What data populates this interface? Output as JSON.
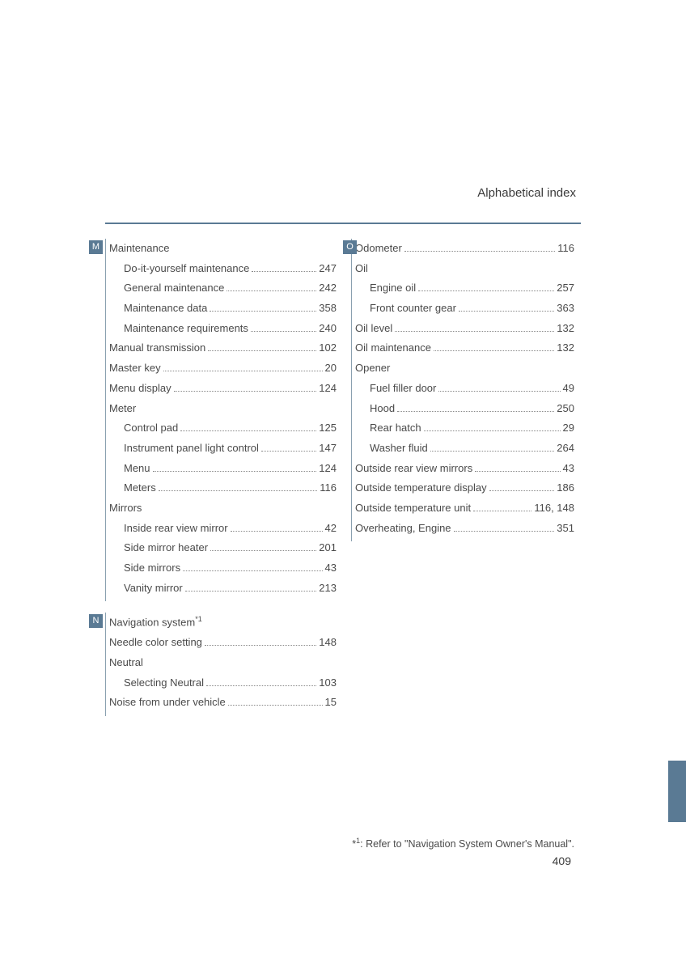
{
  "header": {
    "title": "Alphabetical index"
  },
  "colors": {
    "accent": "#5a7a94",
    "text": "#4a4a4a"
  },
  "footnote": "*1: Refer to \"Navigation System Owner's Manual\".",
  "page_number": "409",
  "left": [
    {
      "letter": "M",
      "items": [
        {
          "label": "Maintenance",
          "page": "",
          "sub": false,
          "nodots": true
        },
        {
          "label": "Do-it-yourself maintenance",
          "page": "247",
          "sub": true
        },
        {
          "label": "General maintenance",
          "page": "242",
          "sub": true
        },
        {
          "label": "Maintenance data",
          "page": "358",
          "sub": true
        },
        {
          "label": "Maintenance requirements",
          "page": "240",
          "sub": true
        },
        {
          "label": "Manual transmission",
          "page": "102",
          "sub": false
        },
        {
          "label": "Master key",
          "page": "20",
          "sub": false
        },
        {
          "label": "Menu display",
          "page": "124",
          "sub": false
        },
        {
          "label": "Meter",
          "page": "",
          "sub": false,
          "nodots": true
        },
        {
          "label": "Control pad",
          "page": "125",
          "sub": true
        },
        {
          "label": "Instrument panel light control",
          "page": "147",
          "sub": true
        },
        {
          "label": "Menu",
          "page": "124",
          "sub": true
        },
        {
          "label": "Meters",
          "page": "116",
          "sub": true
        },
        {
          "label": "Mirrors",
          "page": "",
          "sub": false,
          "nodots": true
        },
        {
          "label": "Inside rear view mirror",
          "page": "42",
          "sub": true
        },
        {
          "label": "Side mirror heater",
          "page": "201",
          "sub": true
        },
        {
          "label": "Side mirrors",
          "page": "43",
          "sub": true
        },
        {
          "label": "Vanity mirror",
          "page": "213",
          "sub": true
        }
      ]
    },
    {
      "letter": "N",
      "items": [
        {
          "label": "Navigation system",
          "sup": "*1",
          "page": "",
          "sub": false,
          "nodots": true
        },
        {
          "label": "Needle color setting",
          "page": "148",
          "sub": false
        },
        {
          "label": "Neutral",
          "page": "",
          "sub": false,
          "nodots": true
        },
        {
          "label": "Selecting Neutral",
          "page": "103",
          "sub": true
        },
        {
          "label": "Noise from under vehicle",
          "page": "15",
          "sub": false
        }
      ]
    }
  ],
  "right": [
    {
      "letter": "O",
      "items": [
        {
          "label": "Odometer",
          "page": "116",
          "sub": false
        },
        {
          "label": "Oil",
          "page": "",
          "sub": false,
          "nodots": true
        },
        {
          "label": "Engine oil",
          "page": "257",
          "sub": true
        },
        {
          "label": "Front counter gear",
          "page": "363",
          "sub": true
        },
        {
          "label": "Oil level",
          "page": "132",
          "sub": false
        },
        {
          "label": "Oil maintenance",
          "page": "132",
          "sub": false
        },
        {
          "label": "Opener",
          "page": "",
          "sub": false,
          "nodots": true
        },
        {
          "label": "Fuel filler door",
          "page": "49",
          "sub": true
        },
        {
          "label": "Hood",
          "page": "250",
          "sub": true
        },
        {
          "label": "Rear hatch",
          "page": "29",
          "sub": true
        },
        {
          "label": "Washer fluid",
          "page": "264",
          "sub": true
        },
        {
          "label": "Outside rear view mirrors",
          "page": "43",
          "sub": false
        },
        {
          "label": "Outside temperature display",
          "page": "186",
          "sub": false
        },
        {
          "label": "Outside temperature unit",
          "page": "116, 148",
          "sub": false
        },
        {
          "label": "Overheating, Engine",
          "page": "351",
          "sub": false
        }
      ]
    }
  ]
}
